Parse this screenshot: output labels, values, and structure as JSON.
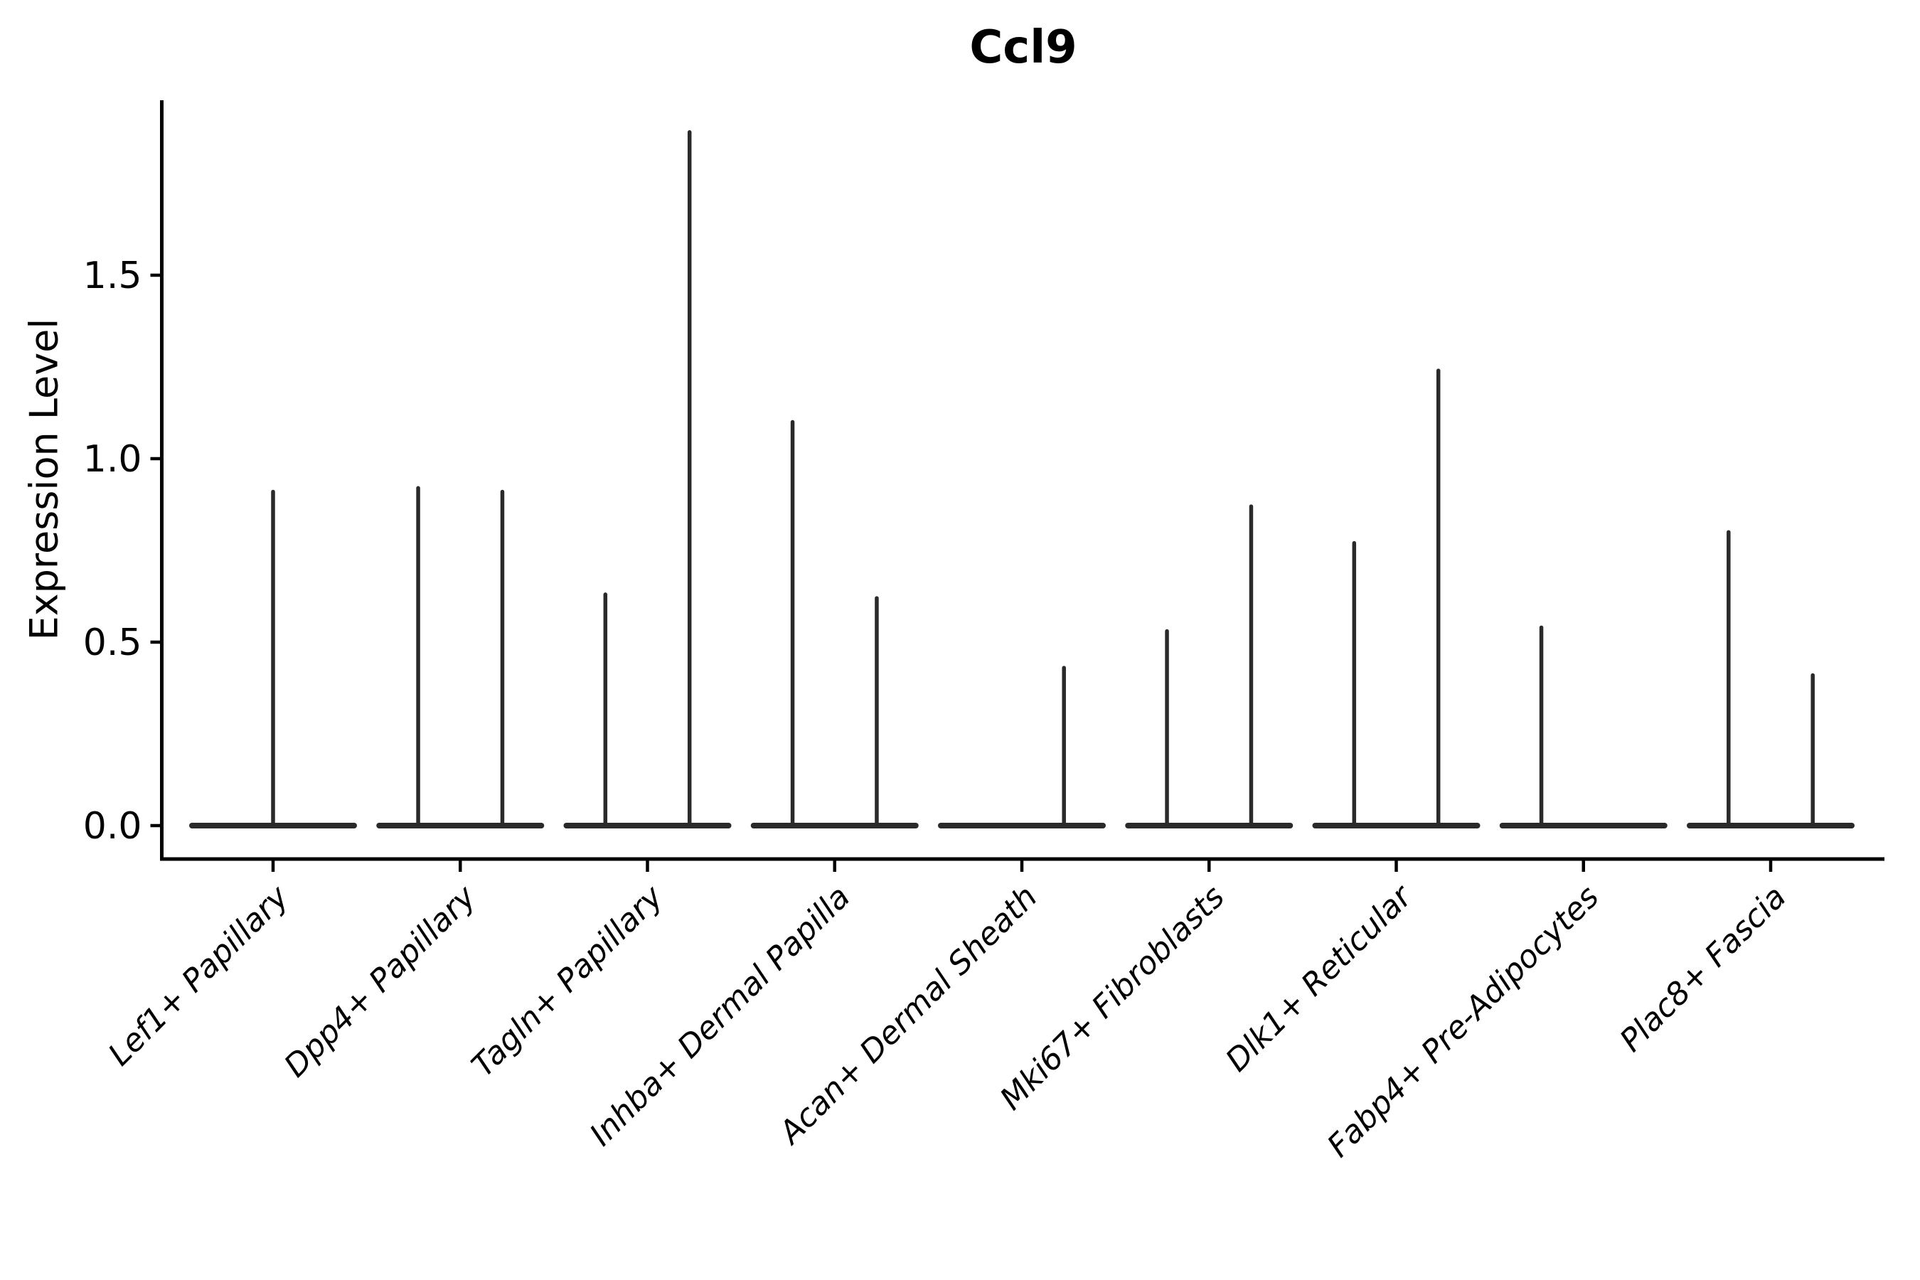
{
  "title": "Ccl9",
  "ylabel": "Expression Level",
  "colors": {
    "violin": "#2a2a2a",
    "axis": "#000000",
    "background": "#ffffff"
  },
  "chart_data": {
    "type": "violin",
    "title": "Ccl9",
    "xlabel": "",
    "ylabel": "Expression Level",
    "ylim": [
      -0.09,
      2.0
    ],
    "yticks": [
      0.0,
      0.5,
      1.0,
      1.5
    ],
    "grid": false,
    "legend": "none",
    "description": "Single-cell expression violin plot; violins are collapsed to a flat base at 0 with thin spikes reaching each group's maximum expression value",
    "categories": [
      "Lef1+ Papillary",
      "Dpp4+ Papillary",
      "Tagln+ Papillary",
      "Inhba+ Dermal Papilla",
      "Acan+ Dermal Sheath",
      "Mki67+ Fibroblasts",
      "Dlk1+ Reticular",
      "Fabp4+ Pre-Adipocytes",
      "Plac8+ Fascia"
    ],
    "violins": [
      {
        "category": "Lef1+ Papillary",
        "baseline": 0.0,
        "spikes": [
          {
            "pos": "center",
            "max": 0.91
          }
        ]
      },
      {
        "category": "Dpp4+ Papillary",
        "baseline": 0.0,
        "spikes": [
          {
            "pos": "left",
            "max": 0.92
          },
          {
            "pos": "right",
            "max": 0.91
          }
        ]
      },
      {
        "category": "Tagln+ Papillary",
        "baseline": 0.0,
        "spikes": [
          {
            "pos": "left",
            "max": 0.63
          },
          {
            "pos": "right",
            "max": 1.89
          }
        ]
      },
      {
        "category": "Inhba+ Dermal Papilla",
        "baseline": 0.0,
        "spikes": [
          {
            "pos": "left",
            "max": 1.1
          },
          {
            "pos": "right",
            "max": 0.62
          }
        ]
      },
      {
        "category": "Acan+ Dermal Sheath",
        "baseline": 0.0,
        "spikes": [
          {
            "pos": "right",
            "max": 0.43
          }
        ]
      },
      {
        "category": "Mki67+ Fibroblasts",
        "baseline": 0.0,
        "spikes": [
          {
            "pos": "left",
            "max": 0.53
          },
          {
            "pos": "right",
            "max": 0.87
          }
        ]
      },
      {
        "category": "Dlk1+ Reticular",
        "baseline": 0.0,
        "spikes": [
          {
            "pos": "left",
            "max": 0.77
          },
          {
            "pos": "right",
            "max": 1.24
          }
        ]
      },
      {
        "category": "Fabp4+ Pre-Adipocytes",
        "baseline": 0.0,
        "spikes": [
          {
            "pos": "left",
            "max": 0.54
          }
        ]
      },
      {
        "category": "Plac8+ Fascia",
        "baseline": 0.0,
        "spikes": [
          {
            "pos": "left",
            "max": 0.8
          },
          {
            "pos": "right",
            "max": 0.41
          }
        ]
      }
    ]
  }
}
